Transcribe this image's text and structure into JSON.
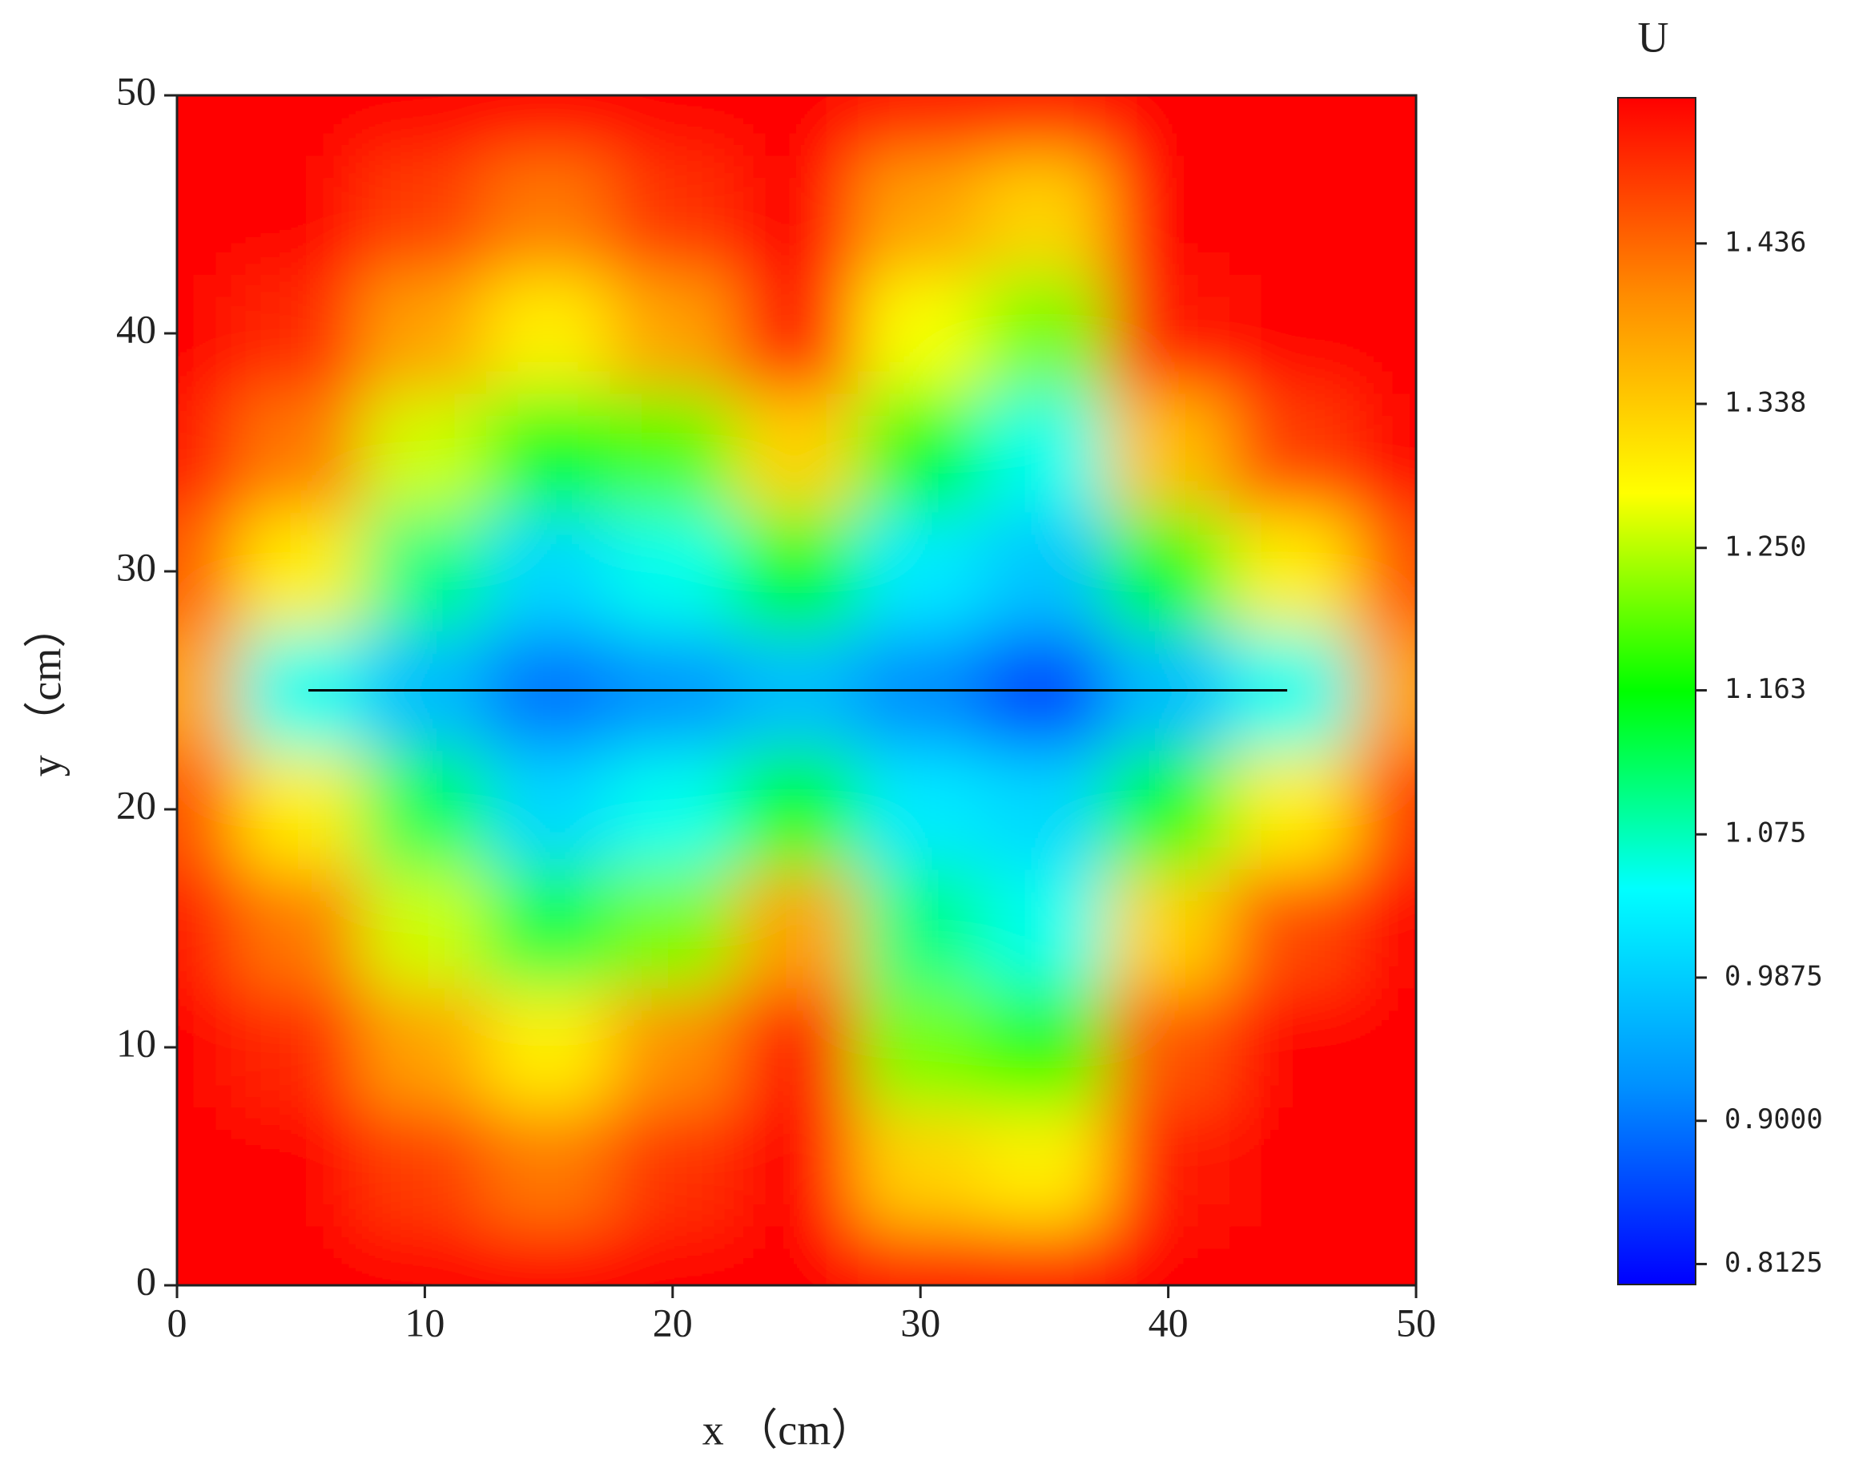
{
  "chart_data": {
    "type": "contour",
    "xlabel": "x （cm）",
    "ylabel": "y （cm）",
    "x": [
      0,
      5,
      10,
      15,
      20,
      25,
      30,
      35,
      40,
      45,
      50
    ],
    "y": [
      0,
      5,
      10,
      15,
      20,
      25,
      30,
      35,
      40,
      45,
      50
    ],
    "z": [
      [
        1.52,
        1.52,
        1.52,
        1.52,
        1.52,
        1.52,
        1.5,
        1.5,
        1.52,
        1.52,
        1.52
      ],
      [
        1.52,
        1.52,
        1.47,
        1.42,
        1.48,
        1.52,
        1.33,
        1.3,
        1.5,
        1.52,
        1.52
      ],
      [
        1.52,
        1.49,
        1.38,
        1.3,
        1.4,
        1.5,
        1.22,
        1.18,
        1.45,
        1.52,
        1.52
      ],
      [
        1.5,
        1.42,
        1.26,
        1.13,
        1.22,
        1.38,
        1.1,
        1.05,
        1.33,
        1.46,
        1.52
      ],
      [
        1.45,
        1.3,
        1.12,
        1.0,
        1.05,
        1.15,
        1.02,
        1.0,
        1.15,
        1.3,
        1.47
      ],
      [
        1.38,
        1.05,
        0.97,
        0.9,
        0.93,
        0.97,
        0.92,
        0.86,
        0.97,
        1.05,
        1.38
      ],
      [
        1.44,
        1.3,
        1.1,
        1.0,
        1.05,
        1.15,
        1.02,
        0.98,
        1.15,
        1.3,
        1.45
      ],
      [
        1.5,
        1.42,
        1.26,
        1.15,
        1.2,
        1.33,
        1.15,
        1.05,
        1.35,
        1.47,
        1.52
      ],
      [
        1.52,
        1.49,
        1.38,
        1.3,
        1.38,
        1.5,
        1.28,
        1.22,
        1.5,
        1.52,
        1.52
      ],
      [
        1.52,
        1.52,
        1.47,
        1.42,
        1.48,
        1.52,
        1.38,
        1.33,
        1.52,
        1.52,
        1.52
      ],
      [
        1.52,
        1.52,
        1.52,
        1.52,
        1.52,
        1.52,
        1.5,
        1.5,
        1.52,
        1.52,
        1.52
      ]
    ],
    "line_segment": {
      "x": [
        5.3,
        44.8
      ],
      "y": [
        25,
        25
      ]
    },
    "xlim": [
      0,
      50
    ],
    "ylim": [
      0,
      50
    ],
    "xticks": [
      0,
      10,
      20,
      30,
      40,
      50
    ],
    "yticks": [
      0,
      10,
      20,
      30,
      40,
      50
    ],
    "colorbar": {
      "label": "U",
      "lim": [
        0.8,
        1.525
      ],
      "ticks": [
        0.8125,
        {
          "value": 0.9,
          "label": "0.9000"
        },
        0.9875,
        1.075,
        1.163,
        {
          "value": 1.25,
          "label": "1.250"
        },
        1.338,
        1.436
      ],
      "colors": [
        "#0000ff",
        "#0090ff",
        "#00ffff",
        "#00ff00",
        "#ffff00",
        "#ff8c00",
        "#ff0000"
      ]
    }
  }
}
